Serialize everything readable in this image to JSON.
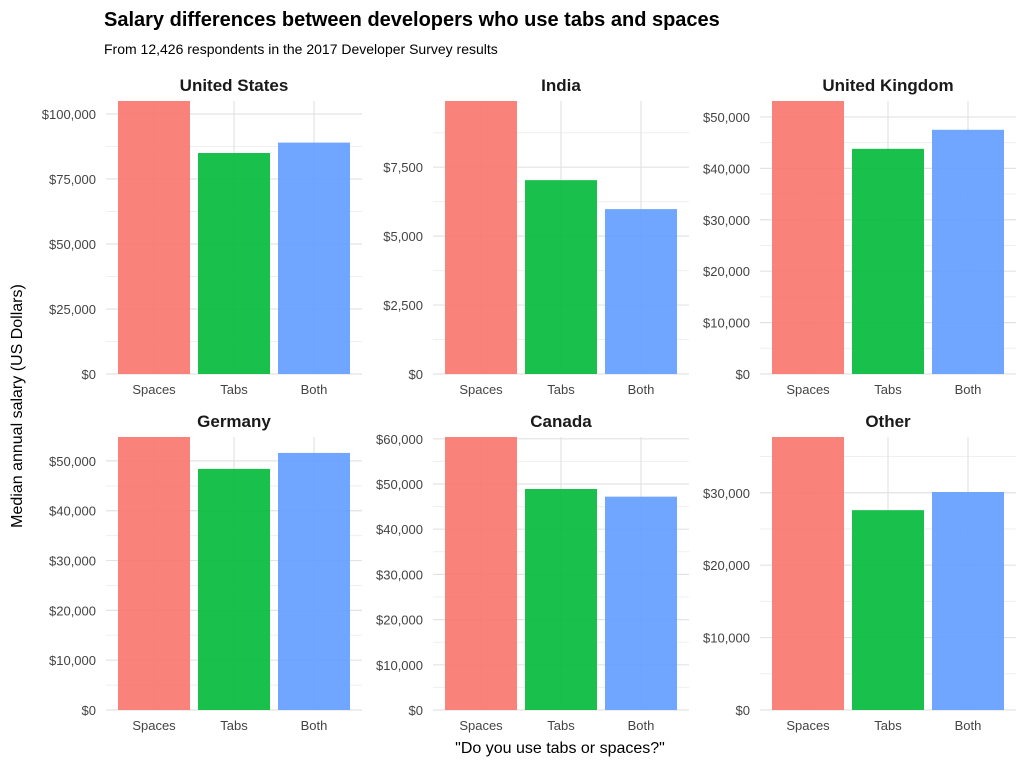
{
  "chart_data": {
    "type": "bar",
    "title": "Salary differences between developers who use tabs and spaces",
    "subtitle": "From 12,426 respondents in the 2017 Developer Survey results",
    "xlabel": "\"Do you use tabs or spaces?\"",
    "ylabel": "Median annual salary (US Dollars)",
    "categories": [
      "Spaces",
      "Tabs",
      "Both"
    ],
    "colors": [
      "#F8766D",
      "#00BA38",
      "#619CFF"
    ],
    "grid": true,
    "legend": "none",
    "facets": [
      {
        "name": "United States",
        "values": [
          105000,
          85000,
          89000
        ],
        "ylim": [
          0,
          105000
        ],
        "ticks": [
          {
            "value": 0,
            "label": "$0"
          },
          {
            "value": 25000,
            "label": "$25,000"
          },
          {
            "value": 50000,
            "label": "$50,000"
          },
          {
            "value": 75000,
            "label": "$75,000"
          },
          {
            "value": 100000,
            "label": "$100,000"
          }
        ]
      },
      {
        "name": "India",
        "values": [
          9900,
          7030,
          5980
        ],
        "ylim": [
          0,
          9900
        ],
        "ticks": [
          {
            "value": 0,
            "label": "$0"
          },
          {
            "value": 2500,
            "label": "$2,500"
          },
          {
            "value": 5000,
            "label": "$5,000"
          },
          {
            "value": 7500,
            "label": "$7,500"
          }
        ]
      },
      {
        "name": "United Kingdom",
        "values": [
          53100,
          43800,
          47500
        ],
        "ylim": [
          0,
          53100
        ],
        "ticks": [
          {
            "value": 0,
            "label": "$0"
          },
          {
            "value": 10000,
            "label": "$10,000"
          },
          {
            "value": 20000,
            "label": "$20,000"
          },
          {
            "value": 30000,
            "label": "$30,000"
          },
          {
            "value": 40000,
            "label": "$40,000"
          },
          {
            "value": 50000,
            "label": "$50,000"
          }
        ]
      },
      {
        "name": "Germany",
        "values": [
          54800,
          48400,
          51600
        ],
        "ylim": [
          0,
          54800
        ],
        "ticks": [
          {
            "value": 0,
            "label": "$0"
          },
          {
            "value": 10000,
            "label": "$10,000"
          },
          {
            "value": 20000,
            "label": "$20,000"
          },
          {
            "value": 30000,
            "label": "$30,000"
          },
          {
            "value": 40000,
            "label": "$40,000"
          },
          {
            "value": 50000,
            "label": "$50,000"
          }
        ]
      },
      {
        "name": "Canada",
        "values": [
          60400,
          48900,
          47200
        ],
        "ylim": [
          0,
          60400
        ],
        "ticks": [
          {
            "value": 0,
            "label": "$0"
          },
          {
            "value": 10000,
            "label": "$10,000"
          },
          {
            "value": 20000,
            "label": "$20,000"
          },
          {
            "value": 30000,
            "label": "$30,000"
          },
          {
            "value": 40000,
            "label": "$40,000"
          },
          {
            "value": 50000,
            "label": "$50,000"
          },
          {
            "value": 60000,
            "label": "$60,000"
          }
        ]
      },
      {
        "name": "Other",
        "values": [
          37700,
          27600,
          30100
        ],
        "ylim": [
          0,
          37700
        ],
        "ticks": [
          {
            "value": 0,
            "label": "$0"
          },
          {
            "value": 10000,
            "label": "$10,000"
          },
          {
            "value": 20000,
            "label": "$20,000"
          },
          {
            "value": 30000,
            "label": "$30,000"
          }
        ]
      }
    ]
  }
}
